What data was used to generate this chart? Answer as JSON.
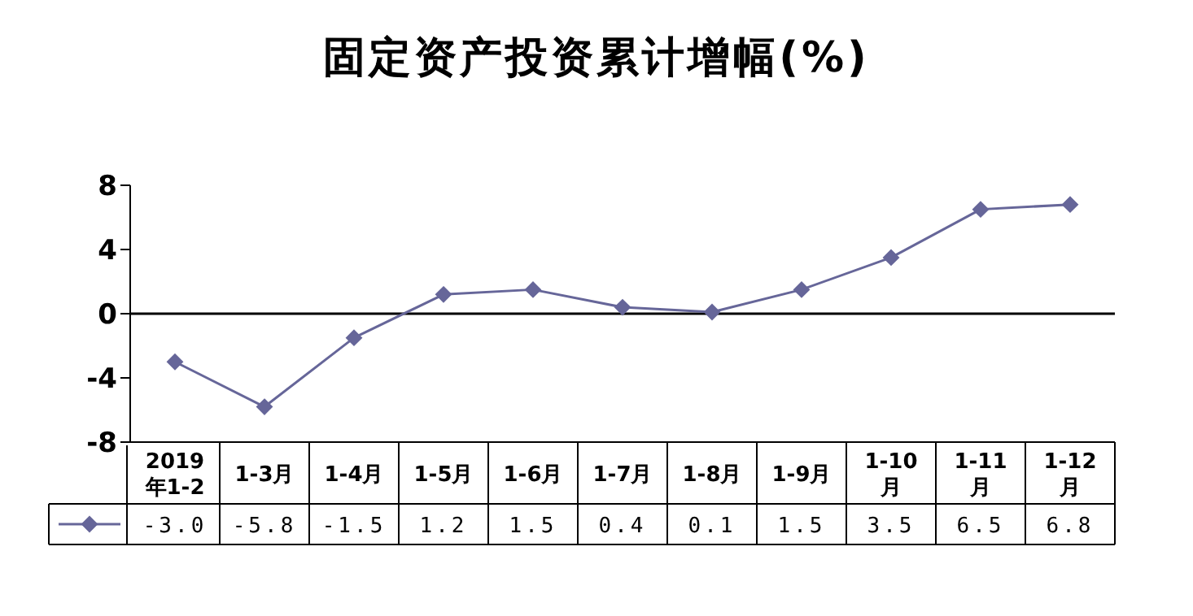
{
  "chart_data": {
    "type": "line",
    "title": "固定资产投资累计增幅(%)",
    "categories": [
      "2019年1-2",
      "1-3月",
      "1-4月",
      "1-5月",
      "1-6月",
      "1-7月",
      "1-8月",
      "1-9月",
      "1-10月",
      "1-11月",
      "1-12月"
    ],
    "series": [
      {
        "color": "#666699",
        "values": [
          -3.0,
          -5.8,
          -1.5,
          1.2,
          1.5,
          0.4,
          0.1,
          1.5,
          3.5,
          6.5,
          6.8
        ],
        "value_labels": [
          "-3.0",
          "-5.8",
          "-1.5",
          "1.2",
          "1.5",
          "0.4",
          "0.1",
          "1.5",
          "3.5",
          "6.5",
          "6.8"
        ]
      }
    ],
    "ylim": [
      -8,
      8
    ],
    "yticks": [
      -8,
      -4,
      0,
      4,
      8
    ],
    "grid": false,
    "marker": "diamond",
    "line_style": "solid",
    "ref_lines": [
      {
        "axis": "y",
        "value": 0,
        "color": "#000000"
      }
    ]
  }
}
